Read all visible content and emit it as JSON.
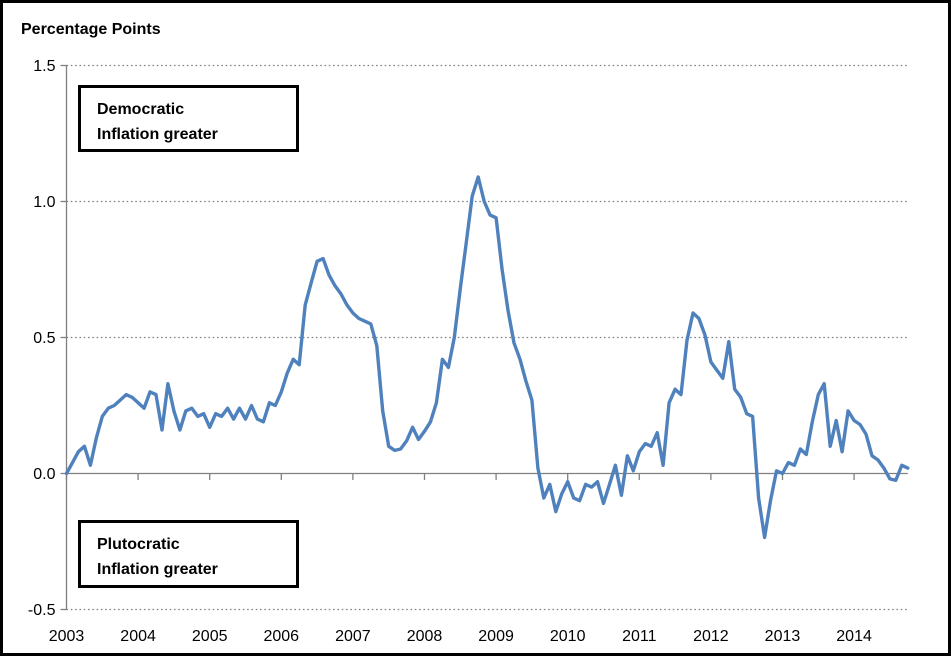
{
  "title": "Percentage Points",
  "annotations": {
    "top": {
      "line1": "Democratic",
      "line2": "Inflation greater"
    },
    "bottom": {
      "line1": "Plutocratic",
      "line2": "Inflation greater"
    }
  },
  "colors": {
    "line": "#4F81BD",
    "grid": "#808080",
    "axis": "#808080",
    "text": "#000000",
    "frame": "#000000",
    "background": "#ffffff"
  },
  "chart_data": {
    "type": "line",
    "title": "Percentage Points",
    "xlabel": "",
    "ylabel": "Percentage Points",
    "legend": "none",
    "grid": "horizontal dotted at 1.5, 1.0, 0.5, -0.5; solid gray line at 0.0",
    "ylim": [
      -0.5,
      1.5
    ],
    "y_ticks": [
      1.5,
      1.0,
      0.5,
      0.0,
      -0.5
    ],
    "y_tick_labels": [
      "1.5",
      "1.0",
      "0.5",
      "0.0",
      "-0.5"
    ],
    "x_tick_labels": [
      "2003",
      "2004",
      "2005",
      "2006",
      "2007",
      "2008",
      "2009",
      "2010",
      "2011",
      "2012",
      "2013",
      "2014"
    ],
    "x_unit": "month",
    "x_range": [
      "2003-01",
      "2014-10"
    ],
    "values": [
      0.0,
      0.04,
      0.08,
      0.1,
      0.03,
      0.13,
      0.21,
      0.24,
      0.25,
      0.27,
      0.29,
      0.28,
      0.26,
      0.24,
      0.3,
      0.29,
      0.16,
      0.33,
      0.23,
      0.16,
      0.23,
      0.24,
      0.21,
      0.22,
      0.17,
      0.22,
      0.21,
      0.24,
      0.2,
      0.24,
      0.2,
      0.25,
      0.2,
      0.19,
      0.26,
      0.25,
      0.3,
      0.37,
      0.42,
      0.4,
      0.62,
      0.7,
      0.78,
      0.79,
      0.73,
      0.69,
      0.66,
      0.62,
      0.59,
      0.57,
      0.56,
      0.55,
      0.47,
      0.23,
      0.1,
      0.085,
      0.09,
      0.12,
      0.17,
      0.125,
      0.155,
      0.19,
      0.26,
      0.42,
      0.39,
      0.5,
      0.68,
      0.85,
      1.02,
      1.09,
      1.0,
      0.95,
      0.94,
      0.75,
      0.6,
      0.48,
      0.42,
      0.34,
      0.27,
      0.02,
      -0.09,
      -0.04,
      -0.14,
      -0.075,
      -0.03,
      -0.09,
      -0.1,
      -0.04,
      -0.05,
      -0.03,
      -0.11,
      -0.04,
      0.03,
      -0.08,
      0.065,
      0.01,
      0.08,
      0.11,
      0.1,
      0.15,
      0.03,
      0.26,
      0.31,
      0.29,
      0.49,
      0.59,
      0.57,
      0.51,
      0.41,
      0.38,
      0.35,
      0.485,
      0.31,
      0.28,
      0.22,
      0.21,
      -0.09,
      -0.235,
      -0.1,
      0.01,
      0.0,
      0.04,
      0.03,
      0.09,
      0.07,
      0.19,
      0.29,
      0.33,
      0.1,
      0.195,
      0.08,
      0.23,
      0.195,
      0.18,
      0.145,
      0.065,
      0.05,
      0.02,
      -0.02,
      -0.025,
      0.03,
      0.02
    ]
  }
}
